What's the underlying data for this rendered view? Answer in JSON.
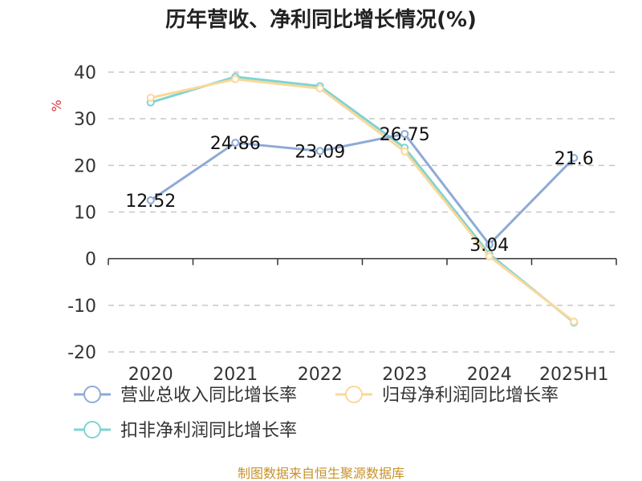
{
  "chart_data": {
    "type": "line",
    "title": "历年营收、净利同比增长情况(%)",
    "ylabel": "%",
    "categories": [
      "2020",
      "2021",
      "2022",
      "2023",
      "2024",
      "2025H1"
    ],
    "ylim": [
      -20,
      40
    ],
    "yticks": [
      -20,
      -10,
      0,
      10,
      20,
      30,
      40
    ],
    "grid": true,
    "legend_position": "bottom",
    "series": [
      {
        "name": "营业总收入同比增长率",
        "color": "#8eaad6",
        "values": [
          12.52,
          24.86,
          23.09,
          26.75,
          3.04,
          21.6
        ],
        "labels": [
          "12.52",
          "24.86",
          "23.09",
          "26.75",
          "3.04",
          "21.6"
        ]
      },
      {
        "name": "归母净利润同比增长率",
        "color": "#f9d89a",
        "values": [
          34.5,
          38.5,
          36.5,
          23,
          0.5,
          -13.5
        ]
      },
      {
        "name": "扣非净利润同比增长率",
        "color": "#7fd3d3",
        "values": [
          33.5,
          39,
          37,
          23.8,
          1,
          -13.7
        ]
      }
    ]
  },
  "source": "制图数据来自恒生聚源数据库"
}
